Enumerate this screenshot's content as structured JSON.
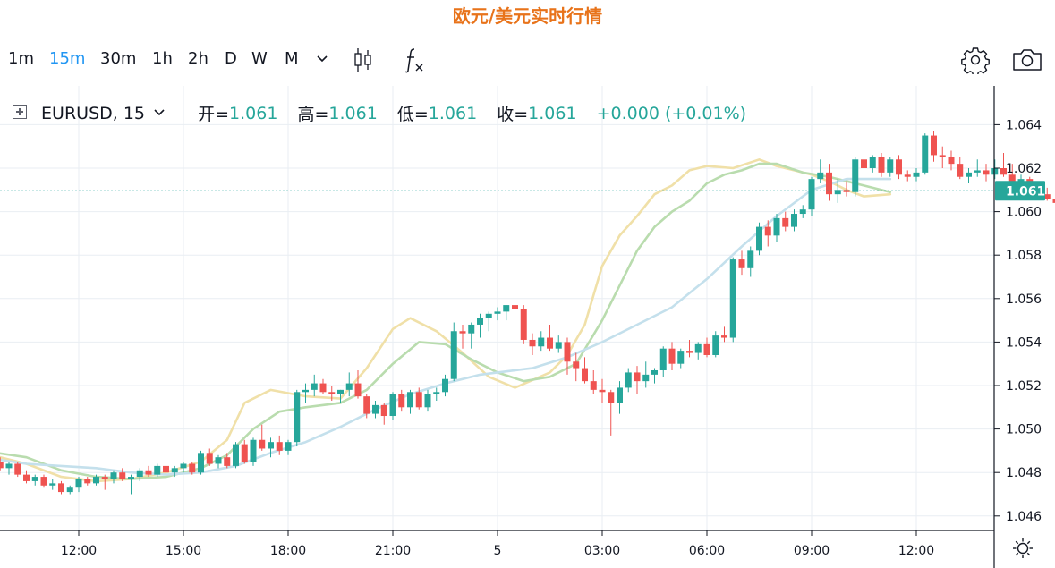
{
  "page_title": "欧元/美元实时行情",
  "toolbar": {
    "timeframes": [
      {
        "label": "1m",
        "active": false
      },
      {
        "label": "15m",
        "active": true
      },
      {
        "label": "30m",
        "active": false
      },
      {
        "label": "1h",
        "active": false
      },
      {
        "label": "2h",
        "active": false
      },
      {
        "label": "D",
        "active": false
      },
      {
        "label": "W",
        "active": false
      },
      {
        "label": "M",
        "active": false
      }
    ],
    "icons": [
      "chevron-down-icon",
      "candlestick-icon",
      "indicator-fx-icon",
      "gear-icon",
      "camera-icon"
    ]
  },
  "legend": {
    "symbol": "EURUSD, 15",
    "open_label": "开=",
    "open_value": "1.061",
    "high_label": "高=",
    "high_value": "1.061",
    "low_label": "低=",
    "low_value": "1.061",
    "close_label": "收=",
    "close_value": "1.061",
    "change": "+0.000 (+0.01%)"
  },
  "colors": {
    "up": "#26a69a",
    "down": "#ef5350",
    "ma_fast": "#f0e0a8",
    "ma_mid": "#b9dcae",
    "ma_slow": "#c4e0ec",
    "price_line": "#26a69a",
    "title": "#e8731a",
    "active_timeframe": "#2196f3"
  },
  "chart_data": {
    "type": "candlestick",
    "symbol": "EURUSD",
    "interval": "15",
    "current_price": "1.061",
    "ylim": [
      1.0452,
      1.0662
    ],
    "y_ticks": [
      "1.064",
      "1.062",
      "1.060",
      "1.058",
      "1.056",
      "1.054",
      "1.052",
      "1.050",
      "1.048",
      "1.046"
    ],
    "x_ticks": [
      "12:00",
      "15:00",
      "18:00",
      "21:00",
      "5",
      "03:00",
      "06:00",
      "09:00",
      "12:00"
    ],
    "x_tick_hours": [
      12,
      15,
      18,
      21,
      24,
      27,
      30,
      33,
      36
    ],
    "grid": true,
    "candle_hours_start": 9.25,
    "candle_hours_step": 0.25,
    "ohlc": [
      [
        1.049,
        1.0492,
        1.0486,
        1.0487
      ],
      [
        1.0487,
        1.0489,
        1.0484,
        1.0485
      ],
      [
        1.0485,
        1.0487,
        1.0481,
        1.0482
      ],
      [
        1.0482,
        1.0485,
        1.0479,
        1.0484
      ],
      [
        1.0484,
        1.0485,
        1.0478,
        1.0479
      ],
      [
        1.0479,
        1.0481,
        1.0475,
        1.0476
      ],
      [
        1.0476,
        1.0479,
        1.0474,
        1.0478
      ],
      [
        1.0478,
        1.0479,
        1.0473,
        1.0474
      ],
      [
        1.0474,
        1.0477,
        1.0472,
        1.0475
      ],
      [
        1.0475,
        1.0476,
        1.047,
        1.0471
      ],
      [
        1.0471,
        1.0474,
        1.047,
        1.0473
      ],
      [
        1.0473,
        1.0478,
        1.0471,
        1.0477
      ],
      [
        1.0477,
        1.0478,
        1.0474,
        1.0475
      ],
      [
        1.0475,
        1.0479,
        1.0474,
        1.0478
      ],
      [
        1.0478,
        1.0479,
        1.0472,
        1.0477
      ],
      [
        1.0477,
        1.0481,
        1.0475,
        1.048
      ],
      [
        1.048,
        1.0482,
        1.0476,
        1.0477
      ],
      [
        1.0477,
        1.0479,
        1.047,
        1.0478
      ],
      [
        1.0478,
        1.0482,
        1.0476,
        1.0481
      ],
      [
        1.0481,
        1.0483,
        1.0478,
        1.0479
      ],
      [
        1.0479,
        1.0484,
        1.0478,
        1.0483
      ],
      [
        1.0483,
        1.0485,
        1.0479,
        1.048
      ],
      [
        1.048,
        1.0483,
        1.0478,
        1.0482
      ],
      [
        1.0482,
        1.0485,
        1.048,
        1.0484
      ],
      [
        1.0484,
        1.0485,
        1.0479,
        1.048
      ],
      [
        1.048,
        1.049,
        1.0479,
        1.0489
      ],
      [
        1.0489,
        1.0491,
        1.0483,
        1.0484
      ],
      [
        1.0484,
        1.0488,
        1.0482,
        1.0487
      ],
      [
        1.0487,
        1.0489,
        1.0482,
        1.0483
      ],
      [
        1.0483,
        1.0494,
        1.0482,
        1.0493
      ],
      [
        1.0493,
        1.0495,
        1.0484,
        1.0485
      ],
      [
        1.0485,
        1.0496,
        1.0483,
        1.0495
      ],
      [
        1.0495,
        1.0502,
        1.049,
        1.0491
      ],
      [
        1.0491,
        1.0496,
        1.0487,
        1.0494
      ],
      [
        1.0494,
        1.0497,
        1.0488,
        1.049
      ],
      [
        1.049,
        1.0495,
        1.0488,
        1.0494
      ],
      [
        1.0494,
        1.0518,
        1.0492,
        1.0517
      ],
      [
        1.0517,
        1.0521,
        1.0512,
        1.0518
      ],
      [
        1.0518,
        1.0525,
        1.0515,
        1.0521
      ],
      [
        1.0521,
        1.0523,
        1.0516,
        1.0517
      ],
      [
        1.0517,
        1.052,
        1.0513,
        1.0516
      ],
      [
        1.0516,
        1.0518,
        1.0512,
        1.0518
      ],
      [
        1.0518,
        1.0526,
        1.0515,
        1.0521
      ],
      [
        1.0521,
        1.0527,
        1.0514,
        1.0515
      ],
      [
        1.0515,
        1.0516,
        1.0505,
        1.0507
      ],
      [
        1.0507,
        1.0513,
        1.0505,
        1.0511
      ],
      [
        1.0511,
        1.0512,
        1.0502,
        1.0506
      ],
      [
        1.0506,
        1.0517,
        1.0504,
        1.0516
      ],
      [
        1.0516,
        1.0518,
        1.0508,
        1.051
      ],
      [
        1.051,
        1.0518,
        1.0507,
        1.0517
      ],
      [
        1.0517,
        1.0519,
        1.0509,
        1.051
      ],
      [
        1.051,
        1.0518,
        1.0508,
        1.0516
      ],
      [
        1.0516,
        1.0519,
        1.0513,
        1.0517
      ],
      [
        1.0517,
        1.0525,
        1.0515,
        1.0523
      ],
      [
        1.0523,
        1.0549,
        1.0522,
        1.0545
      ],
      [
        1.0545,
        1.0548,
        1.0537,
        1.0544
      ],
      [
        1.0544,
        1.0549,
        1.0537,
        1.0548
      ],
      [
        1.0548,
        1.0553,
        1.0542,
        1.0551
      ],
      [
        1.0551,
        1.0554,
        1.0545,
        1.0553
      ],
      [
        1.0553,
        1.0556,
        1.055,
        1.0554
      ],
      [
        1.0554,
        1.0557,
        1.055,
        1.0557
      ],
      [
        1.0557,
        1.056,
        1.0554,
        1.0555
      ],
      [
        1.0555,
        1.0557,
        1.0539,
        1.0541
      ],
      [
        1.0541,
        1.0544,
        1.0534,
        1.0538
      ],
      [
        1.0538,
        1.0545,
        1.0536,
        1.0542
      ],
      [
        1.0542,
        1.0548,
        1.0536,
        1.0537
      ],
      [
        1.0537,
        1.0543,
        1.0535,
        1.054
      ],
      [
        1.054,
        1.0542,
        1.0525,
        1.0531
      ],
      [
        1.0531,
        1.0535,
        1.0522,
        1.0528
      ],
      [
        1.0528,
        1.0533,
        1.0521,
        1.0522
      ],
      [
        1.0522,
        1.0527,
        1.0516,
        1.0518
      ],
      [
        1.0518,
        1.0523,
        1.0512,
        1.0517
      ],
      [
        1.0517,
        1.0518,
        1.0497,
        1.0512
      ],
      [
        1.0512,
        1.0522,
        1.0507,
        1.0519
      ],
      [
        1.0519,
        1.0528,
        1.0517,
        1.0526
      ],
      [
        1.0526,
        1.0529,
        1.0516,
        1.0522
      ],
      [
        1.0522,
        1.0531,
        1.0519,
        1.0525
      ],
      [
        1.0525,
        1.0528,
        1.0521,
        1.0527
      ],
      [
        1.0527,
        1.0538,
        1.0524,
        1.0537
      ],
      [
        1.0537,
        1.054,
        1.0527,
        1.053
      ],
      [
        1.053,
        1.0537,
        1.0528,
        1.0536
      ],
      [
        1.0536,
        1.0541,
        1.0533,
        1.0535
      ],
      [
        1.0535,
        1.054,
        1.0532,
        1.0539
      ],
      [
        1.0539,
        1.0542,
        1.0533,
        1.0534
      ],
      [
        1.0534,
        1.0545,
        1.0533,
        1.0543
      ],
      [
        1.0543,
        1.0547,
        1.054,
        1.0542
      ],
      [
        1.0542,
        1.0579,
        1.054,
        1.0578
      ],
      [
        1.0578,
        1.0582,
        1.0571,
        1.0574
      ],
      [
        1.0574,
        1.0584,
        1.057,
        1.0582
      ],
      [
        1.0582,
        1.0595,
        1.058,
        1.0593
      ],
      [
        1.0593,
        1.0596,
        1.0584,
        1.0589
      ],
      [
        1.0589,
        1.0599,
        1.0586,
        1.0597
      ],
      [
        1.0597,
        1.06,
        1.0591,
        1.0593
      ],
      [
        1.0593,
        1.0601,
        1.0591,
        1.0599
      ],
      [
        1.0599,
        1.0603,
        1.0597,
        1.0601
      ],
      [
        1.0601,
        1.0616,
        1.0598,
        1.0615
      ],
      [
        1.0615,
        1.0624,
        1.0613,
        1.0618
      ],
      [
        1.0618,
        1.0622,
        1.0605,
        1.0608
      ],
      [
        1.0608,
        1.0615,
        1.0604,
        1.061
      ],
      [
        1.061,
        1.0614,
        1.0607,
        1.0609
      ],
      [
        1.0609,
        1.0625,
        1.0607,
        1.0624
      ],
      [
        1.0624,
        1.0627,
        1.0619,
        1.062
      ],
      [
        1.062,
        1.0626,
        1.0618,
        1.0625
      ],
      [
        1.0625,
        1.0627,
        1.0616,
        1.0618
      ],
      [
        1.0618,
        1.0625,
        1.0616,
        1.0624
      ],
      [
        1.0624,
        1.0626,
        1.0615,
        1.0617
      ],
      [
        1.0617,
        1.0619,
        1.0614,
        1.0616
      ],
      [
        1.0616,
        1.062,
        1.0614,
        1.0618
      ],
      [
        1.0618,
        1.0636,
        1.0617,
        1.0635
      ],
      [
        1.0635,
        1.0637,
        1.0623,
        1.0626
      ],
      [
        1.0626,
        1.063,
        1.062,
        1.0625
      ],
      [
        1.0625,
        1.0628,
        1.0619,
        1.0622
      ],
      [
        1.0622,
        1.0625,
        1.0615,
        1.0616
      ],
      [
        1.0616,
        1.062,
        1.0613,
        1.0618
      ],
      [
        1.0618,
        1.0624,
        1.0616,
        1.0619
      ],
      [
        1.0619,
        1.0622,
        1.0614,
        1.0617
      ],
      [
        1.0617,
        1.0624,
        1.0615,
        1.062
      ],
      [
        1.062,
        1.0627,
        1.0616,
        1.0617
      ],
      [
        1.0617,
        1.0622,
        1.0609,
        1.0613
      ],
      [
        1.0613,
        1.0617,
        1.061,
        1.0615
      ],
      [
        1.0615,
        1.0616,
        1.0608,
        1.0609
      ],
      [
        1.0609,
        1.0613,
        1.0606,
        1.0608
      ],
      [
        1.0608,
        1.0611,
        1.0605,
        1.0606
      ],
      [
        1.0606,
        1.061,
        1.0602,
        1.0604
      ],
      [
        1.0604,
        1.0608,
        1.0602,
        1.0607
      ],
      [
        1.0607,
        1.061,
        1.0605,
        1.0609
      ]
    ],
    "moving_averages": [
      {
        "points": [
          [
            9.25,
            1.0489
          ],
          [
            10.5,
            1.0484
          ],
          [
            11.5,
            1.0478
          ],
          [
            12.5,
            1.0476
          ],
          [
            13.5,
            1.0477
          ],
          [
            14.5,
            1.048
          ],
          [
            15.5,
            1.0485
          ],
          [
            16.25,
            1.0495
          ],
          [
            16.75,
            1.0512
          ],
          [
            17.5,
            1.0518
          ],
          [
            18.5,
            1.0515
          ],
          [
            19.5,
            1.0514
          ],
          [
            20.25,
            1.0528
          ],
          [
            21,
            1.0546
          ],
          [
            21.5,
            1.0551
          ],
          [
            22.25,
            1.0545
          ],
          [
            23,
            1.0535
          ],
          [
            23.75,
            1.0524
          ],
          [
            24.5,
            1.0519
          ],
          [
            25.5,
            1.0526
          ],
          [
            26,
            1.0534
          ],
          [
            26.5,
            1.0548
          ],
          [
            27,
            1.0575
          ],
          [
            27.5,
            1.0589
          ],
          [
            28,
            1.0598
          ],
          [
            28.5,
            1.0608
          ],
          [
            29,
            1.0612
          ],
          [
            29.5,
            1.0619
          ],
          [
            30,
            1.0621
          ],
          [
            30.75,
            1.062
          ],
          [
            31.5,
            1.0624
          ],
          [
            32,
            1.0621
          ],
          [
            32.5,
            1.0619
          ],
          [
            33,
            1.0617
          ],
          [
            33.5,
            1.0614
          ],
          [
            34,
            1.061
          ],
          [
            34.5,
            1.0607
          ],
          [
            35.25,
            1.0608
          ]
        ]
      },
      {
        "points": [
          [
            9.25,
            1.049
          ],
          [
            10.5,
            1.0487
          ],
          [
            11.5,
            1.0481
          ],
          [
            12.5,
            1.0478
          ],
          [
            13.5,
            1.0477
          ],
          [
            14.5,
            1.0478
          ],
          [
            15.5,
            1.0482
          ],
          [
            16.25,
            1.0488
          ],
          [
            17,
            1.05
          ],
          [
            17.75,
            1.0508
          ],
          [
            18.5,
            1.051
          ],
          [
            19.5,
            1.0512
          ],
          [
            20.25,
            1.0518
          ],
          [
            21,
            1.053
          ],
          [
            21.75,
            1.054
          ],
          [
            22.5,
            1.0539
          ],
          [
            23.25,
            1.0532
          ],
          [
            24,
            1.0526
          ],
          [
            24.75,
            1.0522
          ],
          [
            25.5,
            1.0524
          ],
          [
            26.25,
            1.053
          ],
          [
            27,
            1.055
          ],
          [
            27.5,
            1.0566
          ],
          [
            28,
            1.0582
          ],
          [
            28.5,
            1.0593
          ],
          [
            29,
            1.06
          ],
          [
            29.5,
            1.0605
          ],
          [
            30,
            1.0613
          ],
          [
            30.5,
            1.0617
          ],
          [
            31,
            1.0619
          ],
          [
            31.5,
            1.0622
          ],
          [
            32,
            1.0622
          ],
          [
            32.75,
            1.0618
          ],
          [
            33.5,
            1.0616
          ],
          [
            34.25,
            1.0613
          ],
          [
            35.25,
            1.0609
          ]
        ]
      },
      {
        "points": [
          [
            9.25,
            1.0487
          ],
          [
            10.5,
            1.0484
          ],
          [
            11.5,
            1.0483
          ],
          [
            12.5,
            1.0482
          ],
          [
            13.5,
            1.048
          ],
          [
            14.5,
            1.0479
          ],
          [
            15.5,
            1.048
          ],
          [
            16.5,
            1.0483
          ],
          [
            17.5,
            1.0489
          ],
          [
            18.5,
            1.0494
          ],
          [
            19.5,
            1.0501
          ],
          [
            20.5,
            1.0509
          ],
          [
            21.5,
            1.0516
          ],
          [
            22.5,
            1.0521
          ],
          [
            23.5,
            1.0525
          ],
          [
            24,
            1.0526
          ],
          [
            25,
            1.0528
          ],
          [
            26,
            1.0533
          ],
          [
            27,
            1.054
          ],
          [
            28,
            1.0548
          ],
          [
            29,
            1.0556
          ],
          [
            30,
            1.0569
          ],
          [
            31,
            1.0584
          ],
          [
            32,
            1.0598
          ],
          [
            33,
            1.061
          ],
          [
            34,
            1.0615
          ],
          [
            35.25,
            1.0615
          ]
        ]
      }
    ]
  }
}
